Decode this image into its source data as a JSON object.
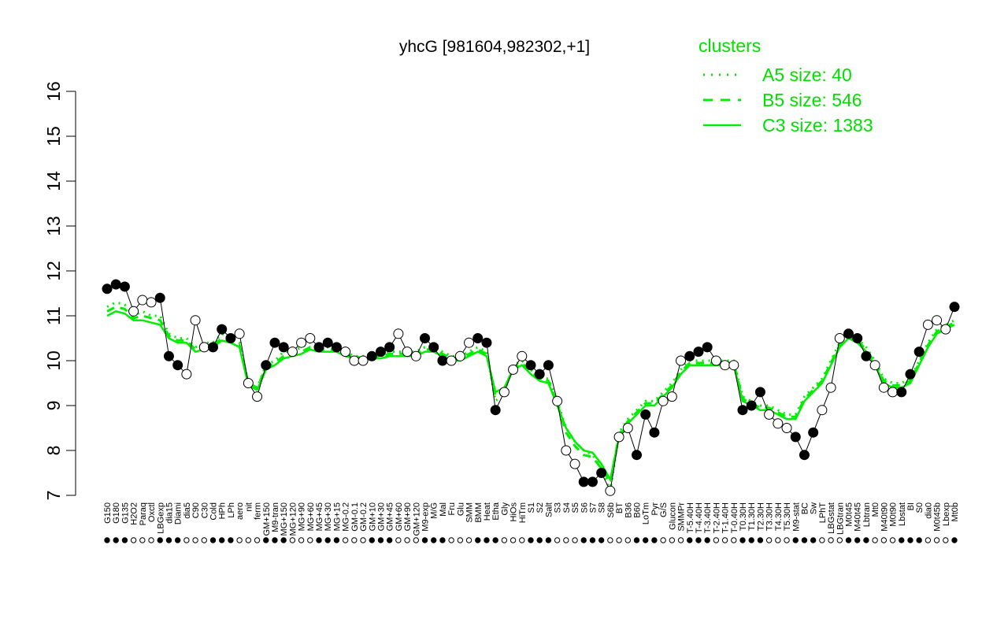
{
  "chart_data": {
    "type": "line",
    "title": "yhcG [981604,982302,+1]",
    "ylim": [
      7,
      16
    ],
    "yticks": [
      7,
      8,
      9,
      10,
      11,
      12,
      13,
      14,
      15,
      16
    ],
    "x_labels": [
      "G150",
      "G180",
      "G135",
      "H2O2",
      "Paraq",
      "Oxctl",
      "LBGexp",
      "dia15",
      "Diami",
      "dia5",
      "C90",
      "C30",
      "Cold",
      "HPh",
      "LPh",
      "aero",
      "nit",
      "ferm",
      "GM+150",
      "M9-tran",
      "MG+150",
      "MG+120",
      "MG+90",
      "MG+60",
      "MG+45",
      "MG+30",
      "MG+15",
      "MG-0.2",
      "GM-0.1",
      "GM-0.2",
      "GM+10",
      "GM+30",
      "GM+45",
      "GM+60",
      "GM+90",
      "GM+120",
      "M9-exp",
      "M/G",
      "Mal",
      "Fru",
      "Glu",
      "SMM",
      "BMM",
      "Heat",
      "Etha",
      "Gly",
      "HiOs",
      "HiTm",
      "S1",
      "S2",
      "Salt",
      "S3",
      "S4",
      "S5",
      "S6",
      "S7",
      "S8",
      "S6b",
      "BT",
      "B36",
      "B60",
      "LoTm",
      "Pyr",
      "G/S",
      "Glucon",
      "SMMPr",
      "T-5.40H",
      "T-4.40H",
      "T-3.40H",
      "T-2.40H",
      "T-1.40H",
      "T-0.40H",
      "T0.30H",
      "T1.30H",
      "T2.30H",
      "T3.30H",
      "T4.30H",
      "T5.30H",
      "M9-stat",
      "BC",
      "Sw",
      "LPhT",
      "LBGstat",
      "LBGtran",
      "M0t45",
      "M40t45",
      "Lbtran",
      "Mt0",
      "M40t90",
      "M0t90",
      "Lbstat",
      "BI",
      "S0",
      "dia0",
      "M0t45b",
      "Lbexp",
      "Mt0b"
    ],
    "series": [
      {
        "name": "A5 size: 40",
        "style": "dotted",
        "values": [
          11.2,
          11.3,
          11.25,
          11.0,
          11.1,
          11.0,
          11.0,
          10.6,
          10.5,
          10.5,
          10.3,
          10.4,
          10.4,
          10.6,
          10.5,
          10.4,
          9.5,
          9.4,
          9.9,
          10.0,
          10.2,
          10.2,
          10.3,
          10.4,
          10.3,
          10.3,
          10.3,
          10.2,
          10.1,
          10.1,
          10.1,
          10.1,
          10.2,
          10.2,
          10.2,
          10.2,
          10.3,
          10.3,
          10.2,
          10.1,
          10.1,
          10.2,
          10.3,
          10.2,
          9.1,
          9.3,
          9.9,
          10.0,
          9.8,
          9.6,
          9.6,
          9.1,
          8.5,
          8.2,
          8.0,
          7.9,
          7.6,
          7.1,
          8.4,
          8.7,
          8.9,
          9.1,
          9.1,
          9.3,
          9.5,
          9.8,
          10.0,
          10.0,
          10.0,
          10.0,
          10.0,
          10.0,
          9.2,
          9.1,
          9.0,
          9.0,
          8.9,
          8.8,
          8.8,
          9.2,
          9.4,
          9.6,
          10.0,
          10.4,
          10.6,
          10.5,
          10.3,
          10.0,
          9.6,
          9.5,
          9.5,
          9.6,
          10.0,
          10.4,
          10.7,
          10.8,
          10.9
        ]
      },
      {
        "name": "B5 size: 546",
        "style": "dashed",
        "values": [
          11.1,
          11.2,
          11.15,
          10.95,
          11.0,
          10.95,
          10.9,
          10.55,
          10.45,
          10.45,
          10.25,
          10.3,
          10.35,
          10.5,
          10.45,
          10.35,
          9.5,
          9.4,
          9.85,
          9.95,
          10.1,
          10.15,
          10.2,
          10.3,
          10.25,
          10.25,
          10.25,
          10.15,
          10.1,
          10.05,
          10.1,
          10.1,
          10.15,
          10.15,
          10.15,
          10.15,
          10.25,
          10.25,
          10.15,
          10.05,
          10.05,
          10.15,
          10.25,
          10.15,
          9.2,
          9.35,
          9.85,
          9.95,
          9.75,
          9.6,
          9.55,
          9.05,
          8.4,
          8.1,
          7.9,
          7.85,
          7.6,
          7.3,
          8.35,
          8.65,
          8.85,
          9.05,
          9.05,
          9.25,
          9.45,
          9.75,
          9.95,
          9.95,
          9.95,
          9.95,
          9.95,
          9.95,
          9.15,
          9.05,
          8.95,
          8.95,
          8.85,
          8.75,
          8.75,
          9.15,
          9.35,
          9.55,
          9.95,
          10.35,
          10.55,
          10.45,
          10.25,
          9.95,
          9.55,
          9.45,
          9.45,
          9.55,
          9.95,
          10.35,
          10.65,
          10.75,
          10.85
        ]
      },
      {
        "name": "C3 size: 1383",
        "style": "solid",
        "values": [
          11.0,
          11.1,
          11.05,
          10.9,
          10.9,
          10.85,
          10.8,
          10.5,
          10.4,
          10.4,
          10.2,
          10.25,
          10.3,
          10.45,
          10.4,
          10.3,
          9.45,
          9.35,
          9.8,
          9.9,
          10.05,
          10.1,
          10.15,
          10.25,
          10.2,
          10.2,
          10.2,
          10.1,
          10.05,
          10.0,
          10.05,
          10.05,
          10.1,
          10.1,
          10.1,
          10.1,
          10.2,
          10.2,
          10.1,
          10.0,
          10.0,
          10.1,
          10.2,
          10.1,
          9.3,
          9.4,
          9.8,
          9.9,
          9.7,
          9.55,
          9.5,
          9.0,
          8.5,
          8.2,
          8.0,
          7.95,
          7.7,
          7.35,
          8.3,
          8.6,
          8.8,
          9.0,
          9.0,
          9.2,
          9.4,
          9.7,
          9.9,
          9.9,
          9.9,
          9.9,
          9.9,
          9.9,
          9.1,
          9.0,
          8.9,
          8.9,
          8.8,
          8.7,
          8.7,
          9.1,
          9.3,
          9.5,
          9.9,
          10.3,
          10.5,
          10.4,
          10.2,
          9.9,
          9.5,
          9.4,
          9.4,
          9.5,
          9.9,
          10.3,
          10.6,
          10.7,
          10.8
        ]
      }
    ],
    "points": [
      11.6,
      11.7,
      11.65,
      11.1,
      11.35,
      11.3,
      11.4,
      10.1,
      9.9,
      9.7,
      10.9,
      10.3,
      10.3,
      10.7,
      10.5,
      10.6,
      9.5,
      9.2,
      9.9,
      10.4,
      10.3,
      10.2,
      10.4,
      10.5,
      10.3,
      10.4,
      10.3,
      10.2,
      10.0,
      10.0,
      10.1,
      10.2,
      10.3,
      10.6,
      10.2,
      10.1,
      10.5,
      10.3,
      10.0,
      10.0,
      10.1,
      10.4,
      10.5,
      10.4,
      8.9,
      9.3,
      9.8,
      10.1,
      9.9,
      9.7,
      9.9,
      9.1,
      8.0,
      7.7,
      7.3,
      7.3,
      7.5,
      7.1,
      8.3,
      8.5,
      7.9,
      8.8,
      8.4,
      9.1,
      9.2,
      10.0,
      10.1,
      10.2,
      10.3,
      10.0,
      9.9,
      9.9,
      8.9,
      9.0,
      9.3,
      8.8,
      8.6,
      8.5,
      8.3,
      7.9,
      8.4,
      8.9,
      9.4,
      10.5,
      10.6,
      10.5,
      10.1,
      9.9,
      9.4,
      9.3,
      9.3,
      9.7,
      10.2,
      10.8,
      10.9,
      10.7,
      11.2
    ],
    "legend": {
      "title": "clusters",
      "placement": "top-right"
    },
    "colors": {
      "line": "#00ee00",
      "points_filled": "#000000",
      "points_open": "#ffffff",
      "connector": "#000000"
    },
    "grid": false
  }
}
